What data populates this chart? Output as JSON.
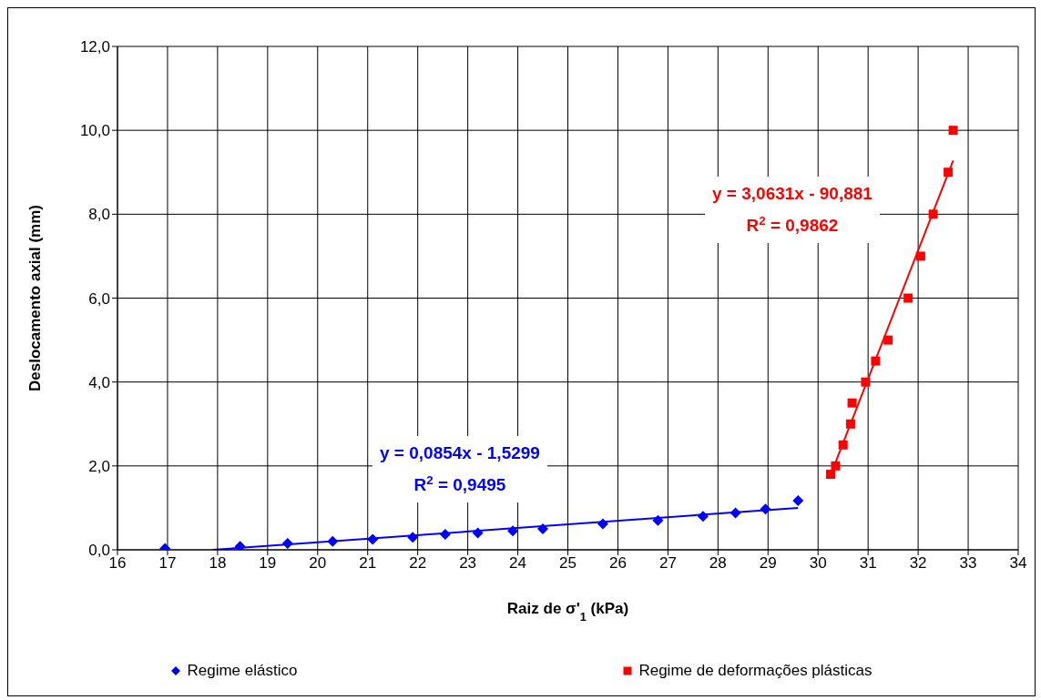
{
  "chart_data": {
    "type": "scatter",
    "xlabel": "Raiz de σ'$_{1}$ (kPa)",
    "ylabel": "Deslocamento axial (mm)",
    "xlim": [
      16,
      34
    ],
    "xticks": [
      16,
      17,
      18,
      19,
      20,
      21,
      22,
      23,
      24,
      25,
      26,
      27,
      28,
      29,
      30,
      31,
      32,
      33,
      34
    ],
    "ylim": [
      0,
      12
    ],
    "yticks": [
      {
        "value": 0,
        "label": "0,0"
      },
      {
        "value": 2,
        "label": "2,0"
      },
      {
        "value": 4,
        "label": "4,0"
      },
      {
        "value": 6,
        "label": "6,0"
      },
      {
        "value": 8,
        "label": "8,0"
      },
      {
        "value": 10,
        "label": "10,0"
      },
      {
        "value": 12,
        "label": "12,0"
      }
    ],
    "grid": true,
    "legend": "bottom",
    "series": [
      {
        "name": "Regime elástico",
        "color": "#0000ff",
        "marker": "diamond",
        "x": [
          16.95,
          18.45,
          19.4,
          20.3,
          21.1,
          21.9,
          22.55,
          23.2,
          23.9,
          24.5,
          25.7,
          26.8,
          27.7,
          28.35,
          28.95,
          29.6
        ],
        "values": [
          0.03,
          0.08,
          0.15,
          0.2,
          0.25,
          0.3,
          0.37,
          0.4,
          0.45,
          0.5,
          0.62,
          0.7,
          0.8,
          0.88,
          0.97,
          1.17
        ]
      },
      {
        "name": "Regime de deformações plásticas",
        "color": "#ff0000",
        "marker": "square",
        "x": [
          30.25,
          30.35,
          30.5,
          30.65,
          30.68,
          30.95,
          31.15,
          31.4,
          31.8,
          32.05,
          32.3,
          32.6,
          32.7
        ],
        "values": [
          1.8,
          2.0,
          2.5,
          3.0,
          3.5,
          4.0,
          4.5,
          5.0,
          6.0,
          7.0,
          8.0,
          9.0,
          10.0
        ]
      },
      {
        "type": "line",
        "color": "#0000ff",
        "x": [
          17.9,
          29.6
        ],
        "values": [
          0.0,
          1.0
        ]
      },
      {
        "type": "line",
        "color": "#ff0000",
        "x": [
          30.25,
          32.7
        ],
        "values": [
          1.78,
          9.28
        ]
      }
    ],
    "annotations": [
      "y = 0,0854x - 1,5299\nR$^{2}$ = 0,9495",
      "y = 3,0631x - 90,881\nR$^{2}$ = 0,9862"
    ]
  }
}
